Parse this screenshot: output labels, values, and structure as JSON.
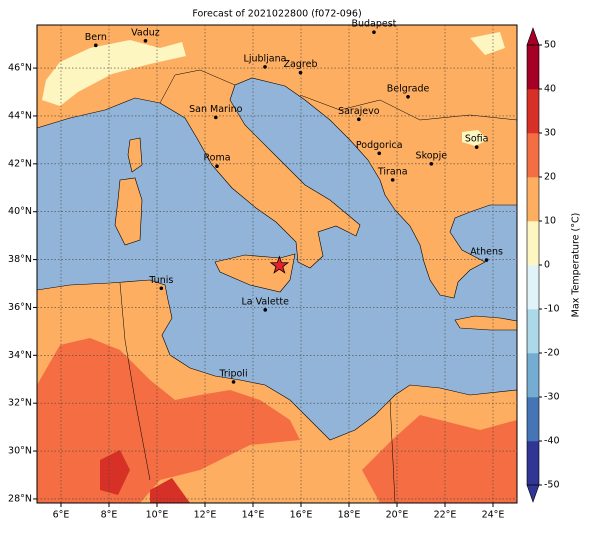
{
  "title": "Forecast of 2021022800 (f072-096)",
  "map": {
    "xlim": [
      5,
      25
    ],
    "ylim": [
      27.83,
      47.8
    ],
    "xticks": [
      {
        "value": 6,
        "label": "6°E"
      },
      {
        "value": 8,
        "label": "8°E"
      },
      {
        "value": 10,
        "label": "10°E"
      },
      {
        "value": 12,
        "label": "12°E"
      },
      {
        "value": 14,
        "label": "14°E"
      },
      {
        "value": 16,
        "label": "16°E"
      },
      {
        "value": 18,
        "label": "18°E"
      },
      {
        "value": 20,
        "label": "20°E"
      },
      {
        "value": 22,
        "label": "22°E"
      },
      {
        "value": 24,
        "label": "24°E"
      }
    ],
    "yticks": [
      {
        "value": 28,
        "label": "28°N"
      },
      {
        "value": 30,
        "label": "30°N"
      },
      {
        "value": 32,
        "label": "32°N"
      },
      {
        "value": 34,
        "label": "34°N"
      },
      {
        "value": 36,
        "label": "36°N"
      },
      {
        "value": 38,
        "label": "38°N"
      },
      {
        "value": 40,
        "label": "40°N"
      },
      {
        "value": 42,
        "label": "42°N"
      },
      {
        "value": 44,
        "label": "44°N"
      },
      {
        "value": 46,
        "label": "46°N"
      }
    ],
    "grid": true,
    "cities": [
      {
        "name": "Bern",
        "lon": 7.45,
        "lat": 46.95
      },
      {
        "name": "Vaduz",
        "lon": 9.52,
        "lat": 47.14
      },
      {
        "name": "Budapest",
        "lon": 19.04,
        "lat": 47.5
      },
      {
        "name": "Ljubljana",
        "lon": 14.5,
        "lat": 46.05
      },
      {
        "name": "Zagreb",
        "lon": 15.98,
        "lat": 45.81
      },
      {
        "name": "Belgrade",
        "lon": 20.46,
        "lat": 44.8
      },
      {
        "name": "San Marino",
        "lon": 12.45,
        "lat": 43.94
      },
      {
        "name": "Sarajevo",
        "lon": 18.41,
        "lat": 43.86
      },
      {
        "name": "Sofia",
        "lon": 23.32,
        "lat": 42.7
      },
      {
        "name": "Podgorica",
        "lon": 19.26,
        "lat": 42.44
      },
      {
        "name": "Skopje",
        "lon": 21.43,
        "lat": 42.0
      },
      {
        "name": "Roma",
        "lon": 12.5,
        "lat": 41.9
      },
      {
        "name": "Tirana",
        "lon": 19.82,
        "lat": 41.33
      },
      {
        "name": "Athens",
        "lon": 23.73,
        "lat": 37.98
      },
      {
        "name": "Tunis",
        "lon": 10.18,
        "lat": 36.8
      },
      {
        "name": "La Valette",
        "lon": 14.51,
        "lat": 35.9
      },
      {
        "name": "Tripoli",
        "lon": 13.19,
        "lat": 32.89
      }
    ],
    "marker": {
      "lon": 15.1,
      "lat": 37.75,
      "color": "#e8202a"
    }
  },
  "colorbar": {
    "label": "Max Temperature (°C)",
    "lim": [
      -50,
      50
    ],
    "ticks": [
      -50,
      -40,
      -30,
      -20,
      -10,
      0,
      10,
      20,
      30,
      40,
      50
    ],
    "colors": [
      "#313695",
      "#4575b4",
      "#74add1",
      "#abd9e9",
      "#e0f3f8",
      "#fef6c0",
      "#fdae61",
      "#f46d43",
      "#d73027",
      "#a50026"
    ]
  }
}
